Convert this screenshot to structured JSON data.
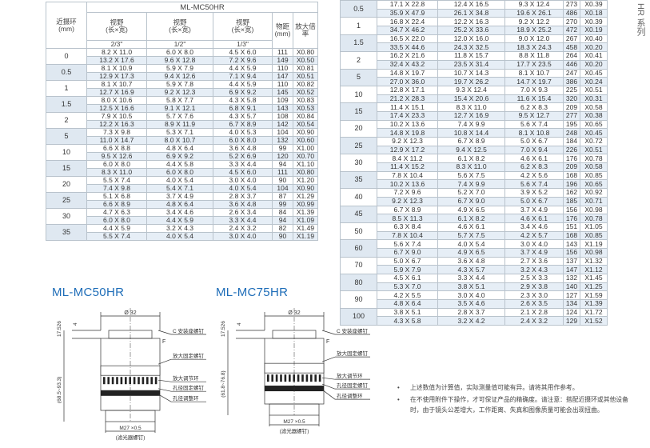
{
  "side_label": "HR 系列",
  "left_table": {
    "model": "ML-MC50HR",
    "ring_header": "近摄环\n(mm)",
    "ring_header_l1": "近摄环",
    "ring_header_l2": "(mm)",
    "fov_label": "视野",
    "fov_sub": "(长×宽)",
    "sensors": [
      "2/3\"",
      "1/2\"",
      "1/3\""
    ],
    "wd_l1": "物距",
    "wd_l2": "(mm)",
    "mag_label": "放大倍率",
    "groups": [
      {
        "ring": "0",
        "rows": [
          [
            "8.2 X 11.0",
            "6.0 X 8.0",
            "4.5 X 6.0",
            "111",
            "X0.80"
          ],
          [
            "13.2 X 17.6",
            "9.6 X 12.8",
            "7.2 X 9.6",
            "149",
            "X0.50"
          ]
        ]
      },
      {
        "ring": "0.5",
        "rows": [
          [
            "8.1 X 10.9",
            "5.9 X 7.9",
            "4.4 X 5.9",
            "110",
            "X0.81"
          ],
          [
            "12.9 X 17.3",
            "9.4 X 12.6",
            "7.1 X 9.4",
            "147",
            "X0.51"
          ]
        ]
      },
      {
        "ring": "1",
        "rows": [
          [
            "8.1 X 10.7",
            "5.9 X 7.8",
            "4.4 X 5.9",
            "110",
            "X0.82"
          ],
          [
            "12.7 X 16.9",
            "9.2 X 12.3",
            "6.9 X 9.2",
            "145",
            "X0.52"
          ]
        ]
      },
      {
        "ring": "1.5",
        "rows": [
          [
            "8.0 X 10.6",
            "5.8 X 7.7",
            "4.3 X 5.8",
            "109",
            "X0.83"
          ],
          [
            "12.5 X 16.6",
            "9.1 X 12.1",
            "6.8 X 9.1",
            "143",
            "X0.53"
          ]
        ]
      },
      {
        "ring": "2",
        "rows": [
          [
            "7.9 X 10.5",
            "5.7 X 7.6",
            "4.3 X 5.7",
            "108",
            "X0.84"
          ],
          [
            "12.2 X 16.3",
            "8.9 X 11.9",
            "6.7 X 8.9",
            "142",
            "X0.54"
          ]
        ]
      },
      {
        "ring": "5",
        "rows": [
          [
            "7.3 X 9.8",
            "5.3 X 7.1",
            "4.0 X 5.3",
            "104",
            "X0.90"
          ],
          [
            "11.0 X 14.7",
            "8.0 X 10.7",
            "6.0 X 8.0",
            "132",
            "X0.60"
          ]
        ]
      },
      {
        "ring": "10",
        "rows": [
          [
            "6.6 X 8.8",
            "4.8 X 6.4",
            "3.6 X 4.8",
            "99",
            "X1.00"
          ],
          [
            "9.5 X 12.6",
            "6.9 X 9.2",
            "5.2 X 6.9",
            "120",
            "X0.70"
          ]
        ]
      },
      {
        "ring": "15",
        "rows": [
          [
            "6.0 X 8.0",
            "4.4 X 5.8",
            "3.3 X 4.4",
            "94",
            "X1.10"
          ],
          [
            "8.3 X 11.0",
            "6.0 X 8.0",
            "4.5 X 6.0",
            "111",
            "X0.80"
          ]
        ]
      },
      {
        "ring": "20",
        "rows": [
          [
            "5.5 X 7.4",
            "4.0 X 5.4",
            "3.0 X 4.0",
            "90",
            "X1.20"
          ],
          [
            "7.4 X 9.8",
            "5.4 X 7.1",
            "4.0 X 5.4",
            "104",
            "X0.90"
          ]
        ]
      },
      {
        "ring": "25",
        "rows": [
          [
            "5.1 X 6.8",
            "3.7 X 4.9",
            "2.8 X 3.7",
            "87",
            "X1.29"
          ],
          [
            "6.6 X 8.9",
            "4.8 X 6.4",
            "3.6 X 4.8",
            "99",
            "X0.99"
          ]
        ]
      },
      {
        "ring": "30",
        "rows": [
          [
            "4.7 X 6.3",
            "3.4 X 4.6",
            "2.6 X 3.4",
            "84",
            "X1.39"
          ],
          [
            "6.0 X 8.0",
            "4.4 X 5.9",
            "3.3 X 4.4",
            "94",
            "X1.09"
          ]
        ]
      },
      {
        "ring": "35",
        "rows": [
          [
            "4.4 X 5.9",
            "3.2 X 4.3",
            "2.4 X 3.2",
            "82",
            "X1.49"
          ],
          [
            "5.5 X 7.4",
            "4.0 X 5.4",
            "3.0 X 4.0",
            "90",
            "X1.19"
          ]
        ]
      }
    ]
  },
  "right_table": {
    "groups": [
      {
        "ring": "0.5",
        "rows": [
          [
            "17.1 X 22.8",
            "12.4 X 16.5",
            "9.3 X 12.4",
            "273",
            "X0.39"
          ],
          [
            "35.9 X 47.9",
            "26.1 X 34.8",
            "19.6 X 26.1",
            "486",
            "X0.18"
          ]
        ]
      },
      {
        "ring": "1",
        "rows": [
          [
            "16.8 X 22.4",
            "12.2 X 16.3",
            "9.2 X 12.2",
            "270",
            "X0.39"
          ],
          [
            "34.7 X 46.2",
            "25.2 X 33.6",
            "18.9 X 25.2",
            "472",
            "X0.19"
          ]
        ]
      },
      {
        "ring": "1.5",
        "rows": [
          [
            "16.5 X 22.0",
            "12.0 X 16.0",
            "9.0 X 12.0",
            "267",
            "X0.40"
          ],
          [
            "33.5 X 44.6",
            "24.3 X 32.5",
            "18.3 X 24.3",
            "458",
            "X0.20"
          ]
        ]
      },
      {
        "ring": "2",
        "rows": [
          [
            "16.2 X 21.6",
            "11.8 X 15.7",
            "8.8 X 11.8",
            "264",
            "X0.41"
          ],
          [
            "32.4 X 43.2",
            "23.5 X 31.4",
            "17.7 X 23.5",
            "446",
            "X0.20"
          ]
        ]
      },
      {
        "ring": "5",
        "rows": [
          [
            "14.8 X 19.7",
            "10.7 X 14.3",
            "8.1 X 10.7",
            "247",
            "X0.45"
          ],
          [
            "27.0 X 36.0",
            "19.7 X 26.2",
            "14.7 X 19.7",
            "386",
            "X0.24"
          ]
        ]
      },
      {
        "ring": "10",
        "rows": [
          [
            "12.8 X 17.1",
            "9.3 X 12.4",
            "7.0 X 9.3",
            "225",
            "X0.51"
          ],
          [
            "21.2 X 28.3",
            "15.4 X 20.6",
            "11.6 X 15.4",
            "320",
            "X0.31"
          ]
        ]
      },
      {
        "ring": "15",
        "rows": [
          [
            "11.4 X 15.1",
            "8.3 X 11.0",
            "6.2 X 8.3",
            "209",
            "X0.58"
          ],
          [
            "17.4 X 23.3",
            "12.7 X 16.9",
            "9.5 X 12.7",
            "277",
            "X0.38"
          ]
        ]
      },
      {
        "ring": "20",
        "rows": [
          [
            "10.2 X 13.6",
            "7.4 X 9.9",
            "5.6 X 7.4",
            "195",
            "X0.65"
          ],
          [
            "14.8 X 19.8",
            "10.8 X 14.4",
            "8.1 X 10.8",
            "248",
            "X0.45"
          ]
        ]
      },
      {
        "ring": "25",
        "rows": [
          [
            "9.2 X 12.3",
            "6.7 X 8.9",
            "5.0 X 6.7",
            "184",
            "X0.72"
          ],
          [
            "12.9 X 17.2",
            "9.4 X 12.5",
            "7.0 X 9.4",
            "226",
            "X0.51"
          ]
        ]
      },
      {
        "ring": "30",
        "rows": [
          [
            "8.4 X 11.2",
            "6.1 X 8.2",
            "4.6 X 6.1",
            "176",
            "X0.78"
          ],
          [
            "11.4 X 15.2",
            "8.3 X 11.0",
            "6.2 X 8.3",
            "209",
            "X0.58"
          ]
        ]
      },
      {
        "ring": "35",
        "rows": [
          [
            "7.8 X 10.4",
            "5.6 X 7.5",
            "4.2 X 5.6",
            "168",
            "X0.85"
          ],
          [
            "10.2 X 13.6",
            "7.4 X 9.9",
            "5.6 X 7.4",
            "196",
            "X0.65"
          ]
        ]
      },
      {
        "ring": "40",
        "rows": [
          [
            "7.2 X 9.6",
            "5.2 X 7.0",
            "3.9 X 5.2",
            "162",
            "X0.92"
          ],
          [
            "9.2 X 12.3",
            "6.7 X 9.0",
            "5.0 X 6.7",
            "185",
            "X0.71"
          ]
        ]
      },
      {
        "ring": "45",
        "rows": [
          [
            "6.7 X 8.9",
            "4.9 X 6.5",
            "3.7 X 4.9",
            "156",
            "X0.98"
          ],
          [
            "8.5 X 11.3",
            "6.1 X 8.2",
            "4.6 X 6.1",
            "176",
            "X0.78"
          ]
        ]
      },
      {
        "ring": "50",
        "rows": [
          [
            "6.3 X 8.4",
            "4.6 X 6.1",
            "3.4 X 4.6",
            "151",
            "X1.05"
          ],
          [
            "7.8 X 10.4",
            "5.7 X 7.5",
            "4.2 X 5.7",
            "168",
            "X0.85"
          ]
        ]
      },
      {
        "ring": "60",
        "rows": [
          [
            "5.6 X 7.4",
            "4.0 X 5.4",
            "3.0 X 4.0",
            "143",
            "X1.19"
          ],
          [
            "6.7 X 9.0",
            "4.9 X 6.5",
            "3.7 X 4.9",
            "156",
            "X0.98"
          ]
        ]
      },
      {
        "ring": "70",
        "rows": [
          [
            "5.0 X 6.7",
            "3.6 X 4.8",
            "2.7 X 3.6",
            "137",
            "X1.32"
          ],
          [
            "5.9 X 7.9",
            "4.3 X 5.7",
            "3.2 X 4.3",
            "147",
            "X1.12"
          ]
        ]
      },
      {
        "ring": "80",
        "rows": [
          [
            "4.5 X 6.1",
            "3.3 X 4.4",
            "2.5 X 3.3",
            "132",
            "X1.45"
          ],
          [
            "5.3 X 7.0",
            "3.8 X 5.1",
            "2.9 X 3.8",
            "140",
            "X1.25"
          ]
        ]
      },
      {
        "ring": "90",
        "rows": [
          [
            "4.2 X 5.5",
            "3.0 X 4.0",
            "2.3 X 3.0",
            "127",
            "X1.59"
          ],
          [
            "4.8 X 6.4",
            "3.5 X 4.6",
            "2.6 X 3.5",
            "134",
            "X1.39"
          ]
        ]
      },
      {
        "ring": "100",
        "rows": [
          [
            "3.8 X 5.1",
            "2.8 X 3.7",
            "2.1 X 2.8",
            "124",
            "X1.72"
          ],
          [
            "4.3 X 5.8",
            "3.2 X 4.2",
            "2.4 X 3.2",
            "129",
            "X1.52"
          ]
        ]
      }
    ]
  },
  "diagrams": [
    {
      "title": "ML-MC50HR",
      "diameter": "Ø 32",
      "flange": "17.526",
      "offset": "4",
      "length": "(68.5~93.3)",
      "thread": "M27  ×0.5",
      "thread_note": "(滤光器螺钉)",
      "mount_letter": "F",
      "callouts": [
        "C 安装座螺钉",
        "放大固定螺钉",
        "放大调节环",
        "孔径固定螺钉",
        "孔径调整环"
      ]
    },
    {
      "title": "ML-MC75HR",
      "diameter": "Ø 32",
      "flange": "17.526",
      "offset": "4",
      "length": "(61.8~76.8)",
      "thread": "M27  ×0.5",
      "thread_note": "(滤光器螺钉)",
      "mount_letter": "F",
      "callouts": [
        "C 安装座螺钉",
        "放大固定螺钉",
        "放大调节环",
        "孔径固定螺钉",
        "孔径调整环"
      ]
    }
  ],
  "notes": [
    "上述数值为计算值，实际测量值可能有异。请将其用作参考。",
    "在不使用附件下操作，才可保证产品的精确度。请注意：搭配近摄环或其他设备时，由于镜头公差增大，工作距离、失真和图像质量可能会出现扭曲。"
  ],
  "bullet": "•",
  "colors": {
    "title_blue": "#1e6db8",
    "row_shade": "#e6eef6",
    "ring_shade": "#dfe8f1",
    "border": "#b9c3cc"
  }
}
